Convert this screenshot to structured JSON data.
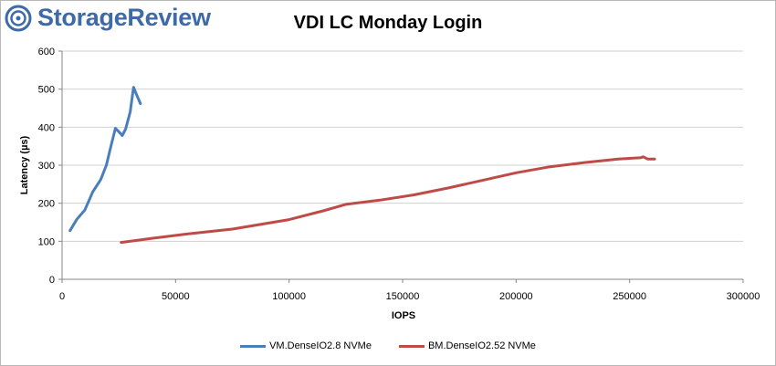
{
  "brand": {
    "name": "StorageReview",
    "color": "#3f6aa8"
  },
  "chart_data": {
    "type": "line",
    "title": "VDI LC Monday Login",
    "xlabel": "IOPS",
    "ylabel": "Latency (µs)",
    "xlim": [
      0,
      300000
    ],
    "ylim": [
      0,
      600
    ],
    "xticks": [
      0,
      50000,
      100000,
      150000,
      200000,
      250000,
      300000
    ],
    "yticks": [
      0,
      100,
      200,
      300,
      400,
      500,
      600
    ],
    "grid": true,
    "legend_position": "bottom",
    "series": [
      {
        "name": "VM.DenseIO2.8 NVMe",
        "color": "#4a7ebb",
        "points": [
          [
            3500,
            128
          ],
          [
            6500,
            158
          ],
          [
            10000,
            182
          ],
          [
            13500,
            230
          ],
          [
            17000,
            262
          ],
          [
            19500,
            300
          ],
          [
            21500,
            350
          ],
          [
            23500,
            397
          ],
          [
            25500,
            385
          ],
          [
            26500,
            378
          ],
          [
            28000,
            395
          ],
          [
            30000,
            440
          ],
          [
            31500,
            505
          ],
          [
            32500,
            490
          ],
          [
            34500,
            462
          ]
        ]
      },
      {
        "name": "BM.DenseIO2.52 NVMe",
        "color": "#be4b48",
        "points": [
          [
            26000,
            97
          ],
          [
            40000,
            108
          ],
          [
            55000,
            119
          ],
          [
            75000,
            132
          ],
          [
            100000,
            157
          ],
          [
            115000,
            180
          ],
          [
            125000,
            197
          ],
          [
            140000,
            208
          ],
          [
            155000,
            222
          ],
          [
            170000,
            240
          ],
          [
            185000,
            260
          ],
          [
            200000,
            280
          ],
          [
            215000,
            296
          ],
          [
            230000,
            307
          ],
          [
            245000,
            316
          ],
          [
            255000,
            320
          ],
          [
            256000,
            322
          ],
          [
            258000,
            316
          ],
          [
            261000,
            316
          ]
        ]
      }
    ]
  }
}
